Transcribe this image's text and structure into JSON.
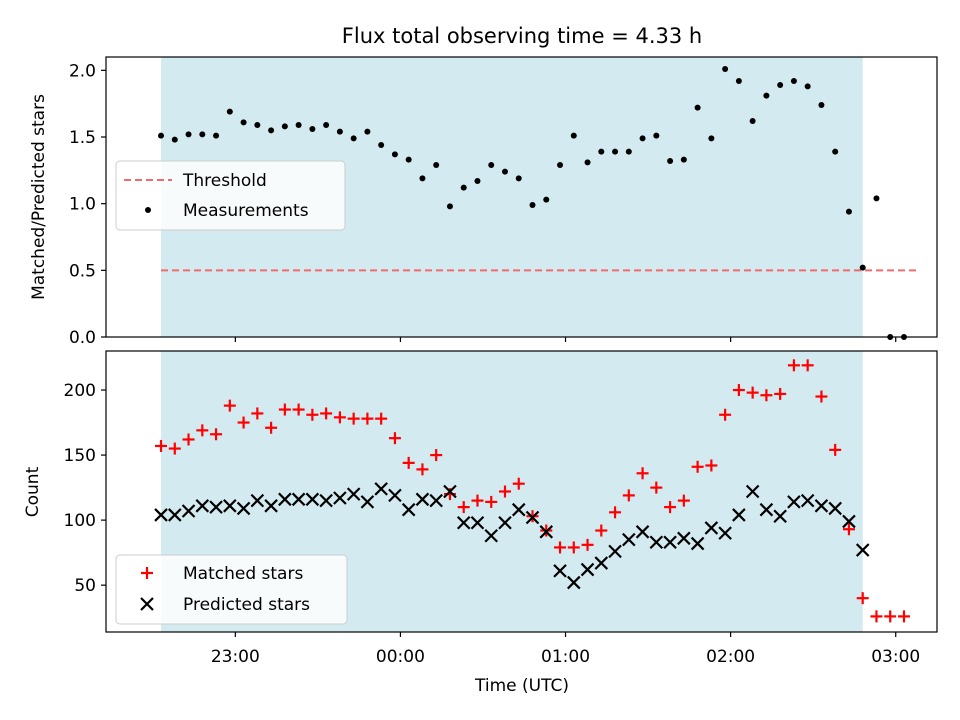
{
  "chart_data": {
    "type": "scatter",
    "title": "Flux total observing time = 4.33 h",
    "xlabel": "Time (UTC)",
    "x_ticks": [
      "23:00",
      "00:00",
      "01:00",
      "02:00",
      "03:00"
    ],
    "x_range": [
      "22:13",
      "03:15"
    ],
    "observing_window": [
      "22:33",
      "02:48"
    ],
    "colors": {
      "window_fill": "#d4eaf1",
      "threshold": "#f26b6b",
      "measurements": "#000000",
      "matched": "#ff0000",
      "predicted": "#000000"
    },
    "panels": [
      {
        "id": "ratio",
        "ylabel": "Matched/Predicted stars",
        "ylim": [
          0,
          2.1
        ],
        "y_ticks": [
          "0.0",
          "0.5",
          "1.0",
          "1.5",
          "2.0"
        ],
        "legend_position": "center-left",
        "threshold": {
          "name": "Threshold",
          "value": 0.5,
          "x_start": "22:33",
          "x_end": "03:08"
        },
        "series": [
          {
            "name": "Measurements",
            "marker": "dot",
            "x": [
              "22:33",
              "22:38",
              "22:43",
              "22:48",
              "22:53",
              "22:58",
              "23:03",
              "23:08",
              "23:13",
              "23:18",
              "23:23",
              "23:28",
              "23:33",
              "23:38",
              "23:43",
              "23:48",
              "23:53",
              "23:58",
              "00:03",
              "00:08",
              "00:13",
              "00:18",
              "00:23",
              "00:28",
              "00:33",
              "00:38",
              "00:43",
              "00:48",
              "00:53",
              "00:58",
              "01:03",
              "01:08",
              "01:13",
              "01:18",
              "01:23",
              "01:28",
              "01:33",
              "01:38",
              "01:43",
              "01:48",
              "01:53",
              "01:58",
              "02:03",
              "02:08",
              "02:13",
              "02:18",
              "02:23",
              "02:28",
              "02:33",
              "02:38",
              "02:43",
              "02:48",
              "02:53",
              "02:58",
              "03:03"
            ],
            "y": [
              1.51,
              1.48,
              1.52,
              1.52,
              1.51,
              1.69,
              1.61,
              1.59,
              1.55,
              1.58,
              1.59,
              1.56,
              1.59,
              1.54,
              1.49,
              1.54,
              1.44,
              1.37,
              1.33,
              1.19,
              1.29,
              0.98,
              1.12,
              1.17,
              1.29,
              1.24,
              1.19,
              0.99,
              1.03,
              1.29,
              1.51,
              1.31,
              1.39,
              1.39,
              1.39,
              1.49,
              1.51,
              1.32,
              1.33,
              1.72,
              1.49,
              2.01,
              1.92,
              1.62,
              1.81,
              1.89,
              1.92,
              1.88,
              1.74,
              1.39,
              0.94,
              0.52,
              1.04,
              0.0,
              0.0
            ]
          }
        ]
      },
      {
        "id": "counts",
        "ylabel": "Count",
        "ylim": [
          14,
          230
        ],
        "y_ticks": [
          "50",
          "100",
          "150",
          "200"
        ],
        "legend_position": "bottom-left",
        "series": [
          {
            "name": "Matched stars",
            "marker": "plus",
            "x": [
              "22:33",
              "22:38",
              "22:43",
              "22:48",
              "22:53",
              "22:58",
              "23:03",
              "23:08",
              "23:13",
              "23:18",
              "23:23",
              "23:28",
              "23:33",
              "23:38",
              "23:43",
              "23:48",
              "23:53",
              "23:58",
              "00:03",
              "00:08",
              "00:13",
              "00:18",
              "00:23",
              "00:28",
              "00:33",
              "00:38",
              "00:43",
              "00:48",
              "00:53",
              "00:58",
              "01:03",
              "01:08",
              "01:13",
              "01:18",
              "01:23",
              "01:28",
              "01:33",
              "01:38",
              "01:43",
              "01:48",
              "01:53",
              "01:58",
              "02:03",
              "02:08",
              "02:13",
              "02:18",
              "02:23",
              "02:28",
              "02:33",
              "02:38",
              "02:43",
              "02:48",
              "02:53",
              "02:58",
              "03:03"
            ],
            "y": [
              157,
              155,
              162,
              169,
              166,
              188,
              175,
              182,
              171,
              185,
              185,
              181,
              182,
              179,
              178,
              178,
              178,
              163,
              144,
              139,
              150,
              120,
              110,
              115,
              114,
              122,
              128,
              103,
              92,
              79,
              79,
              81,
              92,
              106,
              119,
              136,
              125,
              110,
              115,
              141,
              142,
              181,
              200,
              198,
              196,
              197,
              219,
              219,
              195,
              154,
              93,
              40,
              26,
              26,
              26
            ]
          },
          {
            "name": "Predicted stars",
            "marker": "x",
            "x": [
              "22:33",
              "22:38",
              "22:43",
              "22:48",
              "22:53",
              "22:58",
              "23:03",
              "23:08",
              "23:13",
              "23:18",
              "23:23",
              "23:28",
              "23:33",
              "23:38",
              "23:43",
              "23:48",
              "23:53",
              "23:58",
              "00:03",
              "00:08",
              "00:13",
              "00:18",
              "00:23",
              "00:28",
              "00:33",
              "00:38",
              "00:43",
              "00:48",
              "00:53",
              "00:58",
              "01:03",
              "01:08",
              "01:13",
              "01:18",
              "01:23",
              "01:28",
              "01:33",
              "01:38",
              "01:43",
              "01:48",
              "01:53",
              "01:58",
              "02:03",
              "02:08",
              "02:13",
              "02:18",
              "02:23",
              "02:28",
              "02:33",
              "02:38",
              "02:43",
              "02:48"
            ],
            "y": [
              104,
              104,
              107,
              111,
              110,
              111,
              109,
              115,
              111,
              116,
              116,
              116,
              115,
              117,
              120,
              114,
              124,
              119,
              108,
              116,
              115,
              122,
              98,
              98,
              88,
              98,
              108,
              102,
              91,
              61,
              52,
              62,
              67,
              76,
              85,
              91,
              83,
              83,
              86,
              82,
              94,
              90,
              104,
              122,
              108,
              103,
              114,
              115,
              111,
              109,
              99,
              77
            ]
          }
        ]
      }
    ]
  }
}
